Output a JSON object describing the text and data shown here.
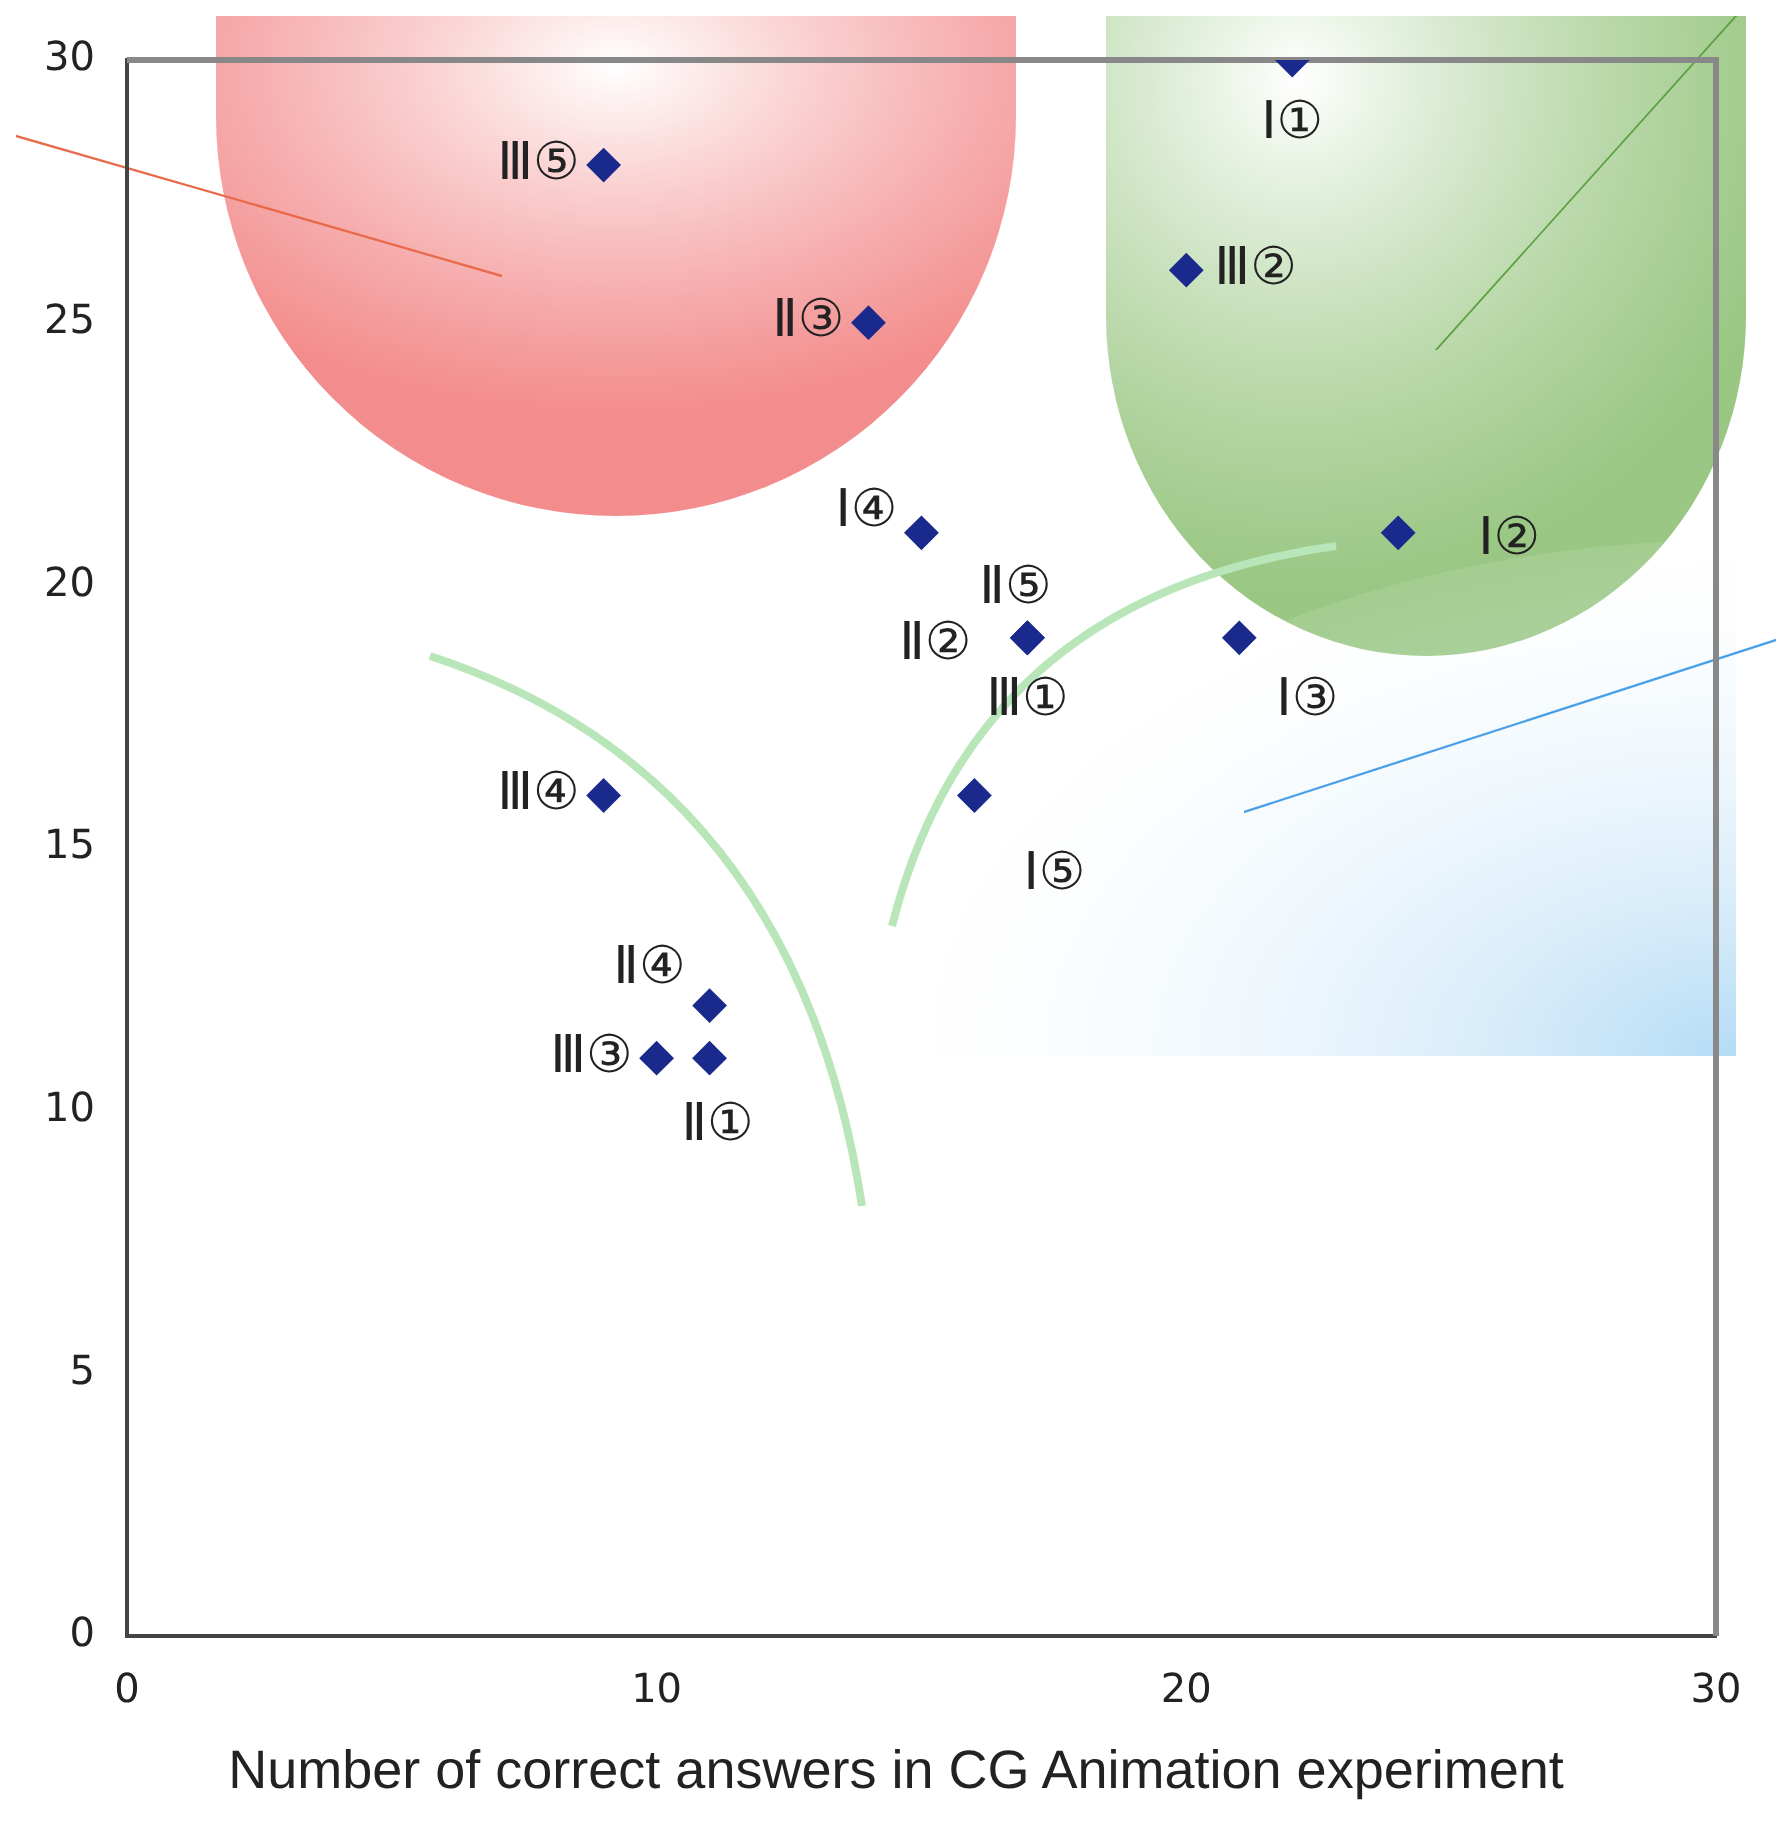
{
  "chart_data": {
    "type": "scatter",
    "xlabel": "Number of correct answers in CG Animation experiment",
    "x": [
      22,
      9,
      14,
      20,
      15,
      24,
      17,
      17,
      17,
      21,
      9,
      16,
      11,
      10,
      11
    ],
    "values": [
      30,
      28,
      25,
      26,
      21,
      21,
      19,
      19,
      19,
      19,
      16,
      16,
      12,
      11,
      11
    ],
    "value_labels": [
      "Ⅰ①",
      "Ⅲ⑤",
      "Ⅱ③",
      "Ⅲ②",
      "Ⅰ④",
      "Ⅰ②",
      "Ⅱ⑤",
      "Ⅱ②",
      "Ⅲ①",
      "Ⅰ③",
      "Ⅲ④",
      "Ⅰ⑤",
      "Ⅱ④",
      "Ⅲ③",
      "Ⅱ①"
    ],
    "color": "#1a2a8c",
    "marker": "diamond",
    "grid": false,
    "xlim": [
      0,
      30
    ],
    "ylim": [
      0,
      30
    ],
    "xticks": [
      0,
      10,
      20,
      30
    ],
    "yticks": [
      0,
      5,
      10,
      15,
      20,
      25,
      30
    ]
  }
}
